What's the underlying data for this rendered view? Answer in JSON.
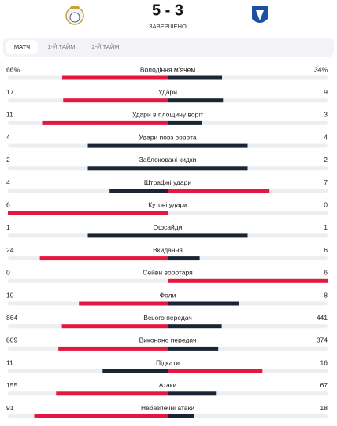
{
  "header": {
    "score": "5 - 3",
    "status": "ЗАВЕРШЕНО"
  },
  "tabs": [
    "МАТЧ",
    "1-Й ТАЙМ",
    "2-Й ТАЙМ"
  ],
  "stats": [
    {
      "label": "Володіння м’ячем",
      "home": 66,
      "away": 34,
      "home_label": "66%",
      "away_label": "34%"
    },
    {
      "label": "Удари",
      "home": 17,
      "away": 9
    },
    {
      "label": "Удари в площину воріт",
      "home": 11,
      "away": 3
    },
    {
      "label": "Удари повз ворота",
      "home": 4,
      "away": 4
    },
    {
      "label": "Заблоковані кидки",
      "home": 2,
      "away": 2
    },
    {
      "label": "Штрафні удари",
      "home": 4,
      "away": 7
    },
    {
      "label": "Кутові удари",
      "home": 6,
      "away": 0
    },
    {
      "label": "Офсайди",
      "home": 1,
      "away": 1
    },
    {
      "label": "Вкидання",
      "home": 24,
      "away": 6
    },
    {
      "label": "Сейви воротаря",
      "home": 0,
      "away": 6
    },
    {
      "label": "Фоли",
      "home": 10,
      "away": 8
    },
    {
      "label": "Всього передач",
      "home": 864,
      "away": 441
    },
    {
      "label": "Виконано передач",
      "home": 809,
      "away": 374
    },
    {
      "label": "Підкати",
      "home": 11,
      "away": 16
    },
    {
      "label": "Атаки",
      "home": 155,
      "away": 67
    },
    {
      "label": "Небезпечні атаки",
      "home": 91,
      "away": 18
    }
  ]
}
